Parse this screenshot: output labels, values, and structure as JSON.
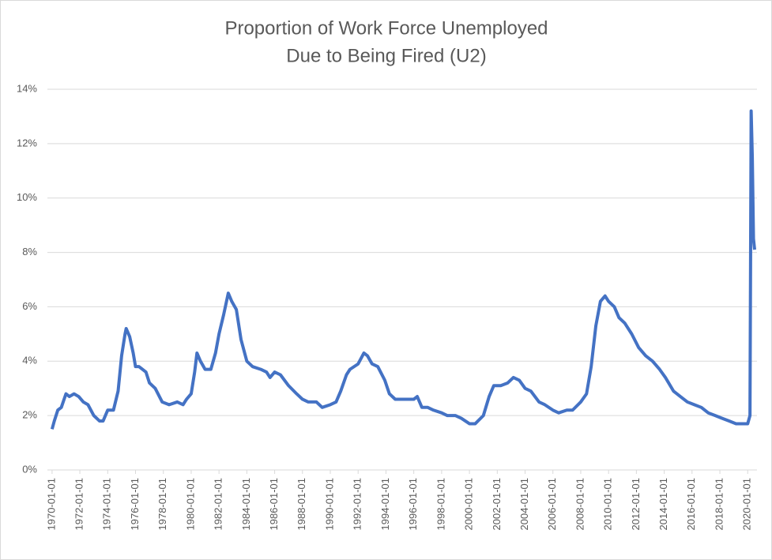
{
  "chart_data": {
    "type": "line",
    "title": [
      "Proportion of Work Force Unemployed",
      "Due to Being Fired (U2)"
    ],
    "color": "#4472c4",
    "grid": true,
    "ylim": [
      0,
      14
    ],
    "yticks": [
      {
        "value": 0,
        "label": "0%"
      },
      {
        "value": 2,
        "label": "2%"
      },
      {
        "value": 4,
        "label": "4%"
      },
      {
        "value": 6,
        "label": "6%"
      },
      {
        "value": 8,
        "label": "8%"
      },
      {
        "value": 10,
        "label": "10%"
      },
      {
        "value": 12,
        "label": "12%"
      },
      {
        "value": 14,
        "label": "14%"
      }
    ],
    "xlim": [
      "1969-09-01",
      "2020-09-01"
    ],
    "xticks": [
      "1970-01-01",
      "1972-01-01",
      "1974-01-01",
      "1976-01-01",
      "1978-01-01",
      "1980-01-01",
      "1982-01-01",
      "1984-01-01",
      "1986-01-01",
      "1988-01-01",
      "1990-01-01",
      "1992-01-01",
      "1994-01-01",
      "1996-01-01",
      "1998-01-01",
      "2000-01-01",
      "2002-01-01",
      "2004-01-01",
      "2006-01-01",
      "2008-01-01",
      "2010-01-01",
      "2012-01-01",
      "2014-01-01",
      "2016-01-01",
      "2018-01-01",
      "2020-01-01"
    ],
    "x": [
      "1970-01-01",
      "1970-03-01",
      "1970-06-01",
      "1970-09-01",
      "1971-01-01",
      "1971-04-01",
      "1971-08-01",
      "1971-12-01",
      "1972-04-01",
      "1972-08-01",
      "1973-01-01",
      "1973-06-01",
      "1973-09-01",
      "1974-01-01",
      "1974-06-01",
      "1974-10-01",
      "1975-01-01",
      "1975-04-01",
      "1975-05-01",
      "1975-08-01",
      "1975-11-01",
      "1976-01-01",
      "1976-04-01",
      "1976-07-01",
      "1976-10-01",
      "1977-01-01",
      "1977-06-01",
      "1977-12-01",
      "1978-06-01",
      "1979-01-01",
      "1979-06-01",
      "1979-09-01",
      "1980-01-01",
      "1980-04-01",
      "1980-06-01",
      "1980-09-01",
      "1981-01-01",
      "1981-06-01",
      "1981-10-01",
      "1982-01-01",
      "1982-05-01",
      "1982-09-01",
      "1982-12-01",
      "1983-04-01",
      "1983-08-01",
      "1984-01-01",
      "1984-06-01",
      "1985-01-01",
      "1985-06-01",
      "1985-09-01",
      "1986-01-01",
      "1986-06-01",
      "1987-01-01",
      "1987-08-01",
      "1988-01-01",
      "1988-06-01",
      "1989-01-01",
      "1989-06-01",
      "1990-01-01",
      "1990-06-01",
      "1990-10-01",
      "1991-03-01",
      "1991-06-01",
      "1992-01-01",
      "1992-06-01",
      "1992-09-01",
      "1993-01-01",
      "1993-06-01",
      "1993-12-01",
      "1994-04-01",
      "1994-09-01",
      "1995-06-01",
      "1996-01-01",
      "1996-04-01",
      "1996-08-01",
      "1997-01-01",
      "1997-06-01",
      "1998-01-01",
      "1998-06-01",
      "1999-01-01",
      "1999-06-01",
      "2000-01-01",
      "2000-06-01",
      "2001-01-01",
      "2001-06-01",
      "2001-10-01",
      "2002-04-01",
      "2002-10-01",
      "2003-03-01",
      "2003-08-01",
      "2004-01-01",
      "2004-06-01",
      "2005-01-01",
      "2005-06-01",
      "2006-01-01",
      "2006-06-01",
      "2007-01-01",
      "2007-06-01",
      "2008-01-01",
      "2008-06-01",
      "2008-10-01",
      "2009-02-01",
      "2009-06-01",
      "2009-10-01",
      "2010-01-01",
      "2010-06-01",
      "2010-10-01",
      "2011-03-01",
      "2011-09-01",
      "2012-03-01",
      "2012-09-01",
      "2013-03-01",
      "2013-09-01",
      "2014-02-01",
      "2014-09-01",
      "2015-03-01",
      "2015-09-01",
      "2016-03-01",
      "2016-09-01",
      "2017-03-01",
      "2017-09-01",
      "2018-03-01",
      "2018-09-01",
      "2019-03-01",
      "2019-09-01",
      "2020-01-01",
      "2020-03-01",
      "2020-04-01",
      "2020-05-01",
      "2020-06-01",
      "2020-07-01"
    ],
    "values": [
      1.5,
      1.8,
      2.2,
      2.3,
      2.8,
      2.7,
      2.8,
      2.7,
      2.5,
      2.4,
      2.0,
      1.8,
      1.8,
      2.2,
      2.2,
      2.9,
      4.2,
      5.0,
      5.2,
      4.9,
      4.3,
      3.8,
      3.8,
      3.7,
      3.6,
      3.2,
      3.0,
      2.5,
      2.4,
      2.5,
      2.4,
      2.6,
      2.8,
      3.6,
      4.3,
      4.0,
      3.7,
      3.7,
      4.3,
      5.0,
      5.7,
      6.5,
      6.2,
      5.9,
      4.8,
      4.0,
      3.8,
      3.7,
      3.6,
      3.4,
      3.6,
      3.5,
      3.1,
      2.8,
      2.6,
      2.5,
      2.5,
      2.3,
      2.4,
      2.5,
      2.9,
      3.5,
      3.7,
      3.9,
      4.3,
      4.2,
      3.9,
      3.8,
      3.3,
      2.8,
      2.6,
      2.6,
      2.6,
      2.7,
      2.3,
      2.3,
      2.2,
      2.1,
      2.0,
      2.0,
      1.9,
      1.7,
      1.7,
      2.0,
      2.7,
      3.1,
      3.1,
      3.2,
      3.4,
      3.3,
      3.0,
      2.9,
      2.5,
      2.4,
      2.2,
      2.1,
      2.2,
      2.2,
      2.5,
      2.8,
      3.8,
      5.3,
      6.2,
      6.4,
      6.2,
      6.0,
      5.6,
      5.4,
      5.0,
      4.5,
      4.2,
      4.0,
      3.7,
      3.4,
      2.9,
      2.7,
      2.5,
      2.4,
      2.3,
      2.1,
      2.0,
      1.9,
      1.8,
      1.7,
      1.7,
      1.7,
      2.0,
      13.2,
      11.5,
      8.5,
      8.1
    ]
  }
}
